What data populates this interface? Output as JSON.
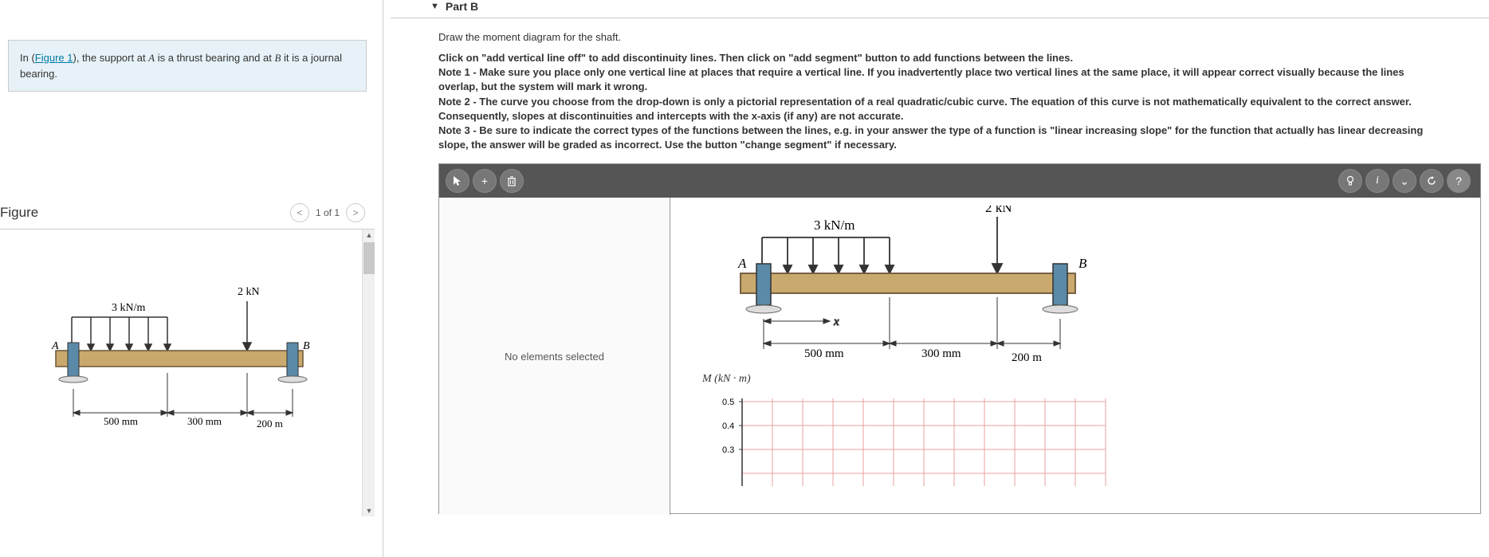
{
  "problem": {
    "prefix": "In (",
    "figure_link": "Figure 1",
    "text_after_link": "), the support at ",
    "var_a": "A",
    "mid1": " is a thrust bearing and at ",
    "var_b": "B",
    "mid2": " it is a journal bearing."
  },
  "figure": {
    "title": "Figure",
    "nav_prev": "<",
    "nav_label": "1 of 1",
    "nav_next": ">"
  },
  "beam": {
    "dist_load_label": "3 kN/m",
    "point_load_label": "2 kN",
    "label_a": "A",
    "label_b": "B",
    "dim1": "500 mm",
    "dim2": "300 mm",
    "dim3": "200 m",
    "x_label": "x",
    "colors": {
      "beam_fill": "#c9a96e",
      "beam_stroke": "#6b5536",
      "support": "#5b8aa8",
      "arrow": "#333333"
    }
  },
  "part": {
    "arrow": "▼",
    "title": "Part B",
    "instruction": "Draw the moment diagram for the shaft.",
    "bold_lines": "Click on \"add vertical line off\" to add discontinuity lines. Then click on \"add segment\" button to add functions between the lines.\nNote 1 - Make sure you place only one vertical line at places that require a vertical line. If you inadvertently place two vertical lines at the same place, it will appear correct visually because the lines overlap, but the system will mark it wrong.\nNote 2 - The curve you choose from the drop-down is only a pictorial representation of a real quadratic/cubic curve. The equation of this curve is not mathematically equivalent to the correct answer. Consequently, slopes at discontinuities and intercepts with the x-axis (if any) are not accurate.\nNote 3 - Be sure to indicate the correct types of the functions between the lines, e.g. in your answer the type of a function is \"linear increasing slope\" for the function that actually has linear decreasing slope, the answer will be graded as incorrect. Use the button \"change segment\" if necessary."
  },
  "toolbar": {
    "cursor": "↖",
    "add": "+",
    "delete": "🗑",
    "hint": "💡",
    "info": "i",
    "expand": "⌄",
    "reset": "↻",
    "help": "?"
  },
  "props": {
    "empty_msg": "No elements selected"
  },
  "moment_chart": {
    "y_label": "M (kN · m)",
    "yticks": [
      "0.5",
      "0.4",
      "0.3"
    ],
    "grid_color": "#e8a0a0",
    "axis_color": "#333"
  }
}
